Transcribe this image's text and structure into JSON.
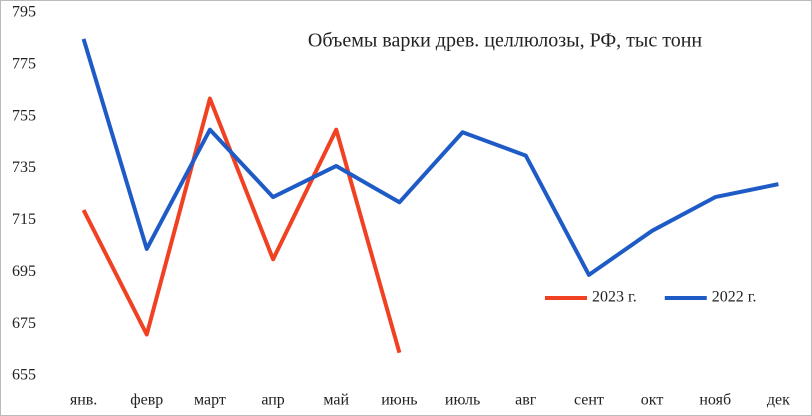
{
  "chart_data": {
    "type": "line",
    "title": "Объемы варки древ. целлюлозы, РФ,  тыс тонн",
    "categories": [
      "янв.",
      "февр",
      "март",
      "апр",
      "май",
      "июнь",
      "июль",
      "авг",
      "сент",
      "окт",
      "нояб",
      "дек"
    ],
    "series": [
      {
        "name": "2023 г.",
        "color": "#f04123",
        "values": [
          719,
          671,
          762,
          700,
          750,
          664,
          null,
          null,
          null,
          null,
          null,
          null
        ]
      },
      {
        "name": "2022 г.",
        "color": "#1f5bc6",
        "values": [
          785,
          704,
          750,
          724,
          736,
          722,
          749,
          740,
          694,
          711,
          724,
          729
        ]
      }
    ],
    "ylim": [
      655,
      795
    ],
    "yticks": [
      655,
      675,
      695,
      715,
      735,
      755,
      775,
      795
    ],
    "grid": false,
    "legend": "lower right"
  }
}
